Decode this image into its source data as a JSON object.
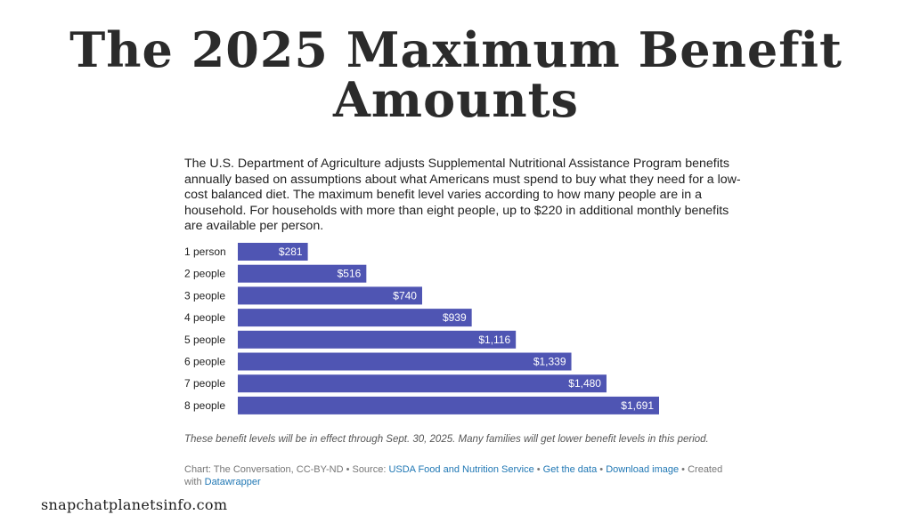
{
  "title": {
    "line1": "The 2025 Maximum Benefit",
    "line2": "Amounts"
  },
  "description": "The U.S. Department of Agriculture adjusts Supplemental Nutritional Assistance Program benefits annually based on assumptions about what Americans must spend to buy what they need for a low-cost balanced diet. The maximum benefit level varies according to how many people are in a household. For households with more than eight people, up to $220 in additional monthly benefits are available per person.",
  "colors": {
    "bar": "#4f55b3"
  },
  "chart_data": {
    "type": "bar",
    "orientation": "horizontal",
    "categories": [
      "1 person",
      "2 people",
      "3 people",
      "4 people",
      "5 people",
      "6 people",
      "7 people",
      "8 people"
    ],
    "values": [
      281,
      516,
      740,
      939,
      1116,
      1339,
      1480,
      1691
    ],
    "value_labels": [
      "$281",
      "$516",
      "$740",
      "$939",
      "$1,116",
      "$1,339",
      "$1,480",
      "$1,691"
    ],
    "xlim": [
      0,
      1691
    ],
    "grid": false,
    "legend": "none"
  },
  "notes": "These benefit levels will be in effect through Sept. 30, 2025. Many families will get lower benefit levels in this period.",
  "credits": {
    "prefix": "Chart: The Conversation, CC-BY-ND • Source: ",
    "source_link": "USDA Food and Nutrition Service",
    "sep1": " • ",
    "get_data": "Get the data",
    "sep2": " • ",
    "download": "Download image",
    "created": " • Created with ",
    "datawrapper": "Datawrapper"
  },
  "watermark": "snapchatplanetsinfo.com"
}
